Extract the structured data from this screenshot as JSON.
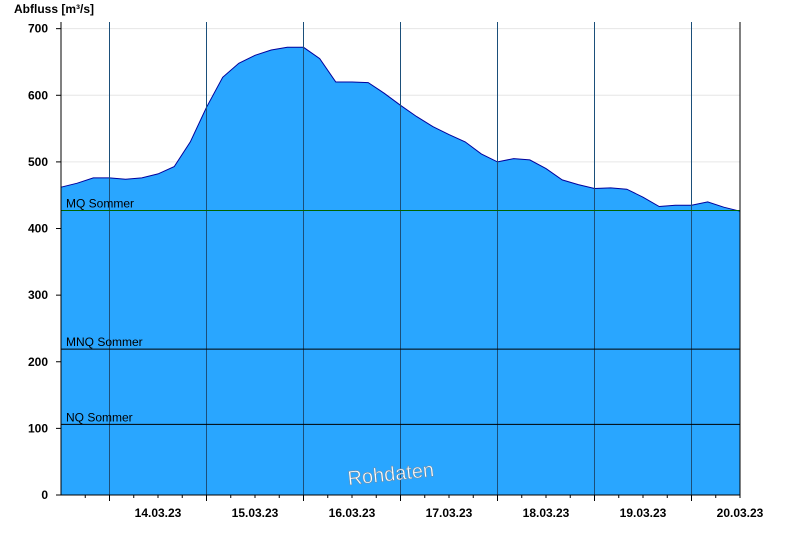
{
  "chart_data": {
    "type": "area",
    "ylabel": "Abfluss [m³/s]",
    "ylim": [
      0,
      710
    ],
    "yticks": [
      0,
      100,
      200,
      300,
      400,
      500,
      600,
      700
    ],
    "xlim": [
      "13.03.23 12:00",
      "20.03.23 12:00"
    ],
    "day_boundaries": [
      "14.03.23 00:00",
      "15.03.23 00:00",
      "16.03.23 00:00",
      "17.03.23 00:00",
      "18.03.23 00:00",
      "19.03.23 00:00",
      "20.03.23 00:00"
    ],
    "xtick_labels": [
      "14.03.23",
      "15.03.23",
      "16.03.23",
      "17.03.23",
      "18.03.23",
      "19.03.23",
      "20.03.23"
    ],
    "grid": true,
    "fill_color": "#29a6ff",
    "line_color": "#00009c",
    "series": [
      {
        "x": [
          "13.03.23 12:00",
          "13.03.23 16:00",
          "13.03.23 20:00",
          "14.03.23 00:00",
          "14.03.23 04:00",
          "14.03.23 08:00",
          "14.03.23 12:00",
          "14.03.23 16:00",
          "14.03.23 20:00",
          "15.03.23 00:00",
          "15.03.23 04:00",
          "15.03.23 08:00",
          "15.03.23 12:00",
          "15.03.23 16:00",
          "15.03.23 20:00",
          "16.03.23 00:00",
          "16.03.23 04:00",
          "16.03.23 08:00",
          "16.03.23 10:00",
          "16.03.23 12:00",
          "16.03.23 16:00",
          "16.03.23 20:00",
          "17.03.23 00:00",
          "17.03.23 04:00",
          "17.03.23 08:00",
          "17.03.23 12:00",
          "17.03.23 16:00",
          "17.03.23 20:00",
          "18.03.23 00:00",
          "18.03.23 04:00",
          "18.03.23 08:00",
          "18.03.23 12:00",
          "18.03.23 16:00",
          "18.03.23 20:00",
          "19.03.23 00:00",
          "19.03.23 04:00",
          "19.03.23 08:00",
          "19.03.23 12:00",
          "19.03.23 16:00",
          "19.03.23 20:00",
          "20.03.23 00:00",
          "20.03.23 04:00",
          "20.03.23 08:00",
          "20.03.23 12:00"
        ],
        "values": [
          462,
          468,
          476,
          476,
          474,
          476,
          482,
          493,
          530,
          582,
          627,
          648,
          660,
          668,
          672,
          672,
          655,
          620,
          620,
          620,
          619,
          603,
          585,
          568,
          553,
          541,
          530,
          512,
          500,
          505,
          503,
          490,
          473,
          466,
          460,
          461,
          459,
          447,
          433,
          435,
          435,
          440,
          432,
          426
        ]
      }
    ],
    "reference_lines": [
      {
        "label": "MQ Sommer",
        "value": 427,
        "color": "#006400"
      },
      {
        "label": "MNQ Sommer",
        "value": 219,
        "color": "#000000"
      },
      {
        "label": "NQ Sommer",
        "value": 106,
        "color": "#000000"
      }
    ],
    "annotation": "Rohdaten"
  }
}
